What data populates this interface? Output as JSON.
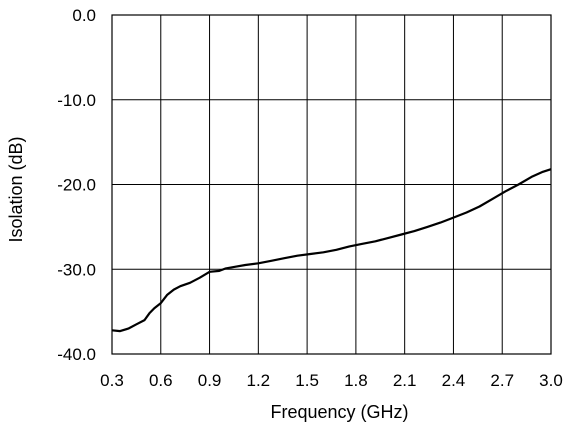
{
  "chart_data": {
    "type": "line",
    "title": "",
    "xlabel": "Frequency (GHz)",
    "ylabel": "Isolation (dB)",
    "xlim": [
      0.3,
      3.0
    ],
    "ylim": [
      -40,
      0
    ],
    "xticks": [
      0.3,
      0.6,
      0.9,
      1.2,
      1.5,
      1.8,
      2.1,
      2.4,
      2.7,
      3.0
    ],
    "xtick_labels": [
      "0.3",
      "0.6",
      "0.9",
      "1.2",
      "1.5",
      "1.8",
      "2.1",
      "2.4",
      "2.7",
      "3.0"
    ],
    "yticks": [
      0,
      -10,
      -20,
      -30,
      -40
    ],
    "ytick_labels": [
      "0.0",
      "-10.0",
      "-20.0",
      "-30.0",
      "-40.0"
    ],
    "grid": true,
    "series": [
      {
        "color": "#000000",
        "x": [
          0.3,
          0.35,
          0.4,
          0.45,
          0.5,
          0.53,
          0.56,
          0.6,
          0.64,
          0.68,
          0.72,
          0.78,
          0.84,
          0.9,
          0.96,
          1.0,
          1.06,
          1.12,
          1.2,
          1.28,
          1.36,
          1.44,
          1.52,
          1.6,
          1.68,
          1.76,
          1.84,
          1.92,
          2.0,
          2.08,
          2.16,
          2.24,
          2.32,
          2.4,
          2.48,
          2.56,
          2.64,
          2.72,
          2.8,
          2.88,
          2.95,
          3.0
        ],
        "values": [
          -37.2,
          -37.3,
          -37.0,
          -36.5,
          -36.0,
          -35.2,
          -34.6,
          -34.0,
          -33.0,
          -32.4,
          -32.0,
          -31.6,
          -31.0,
          -30.3,
          -30.2,
          -29.9,
          -29.7,
          -29.5,
          -29.3,
          -29.0,
          -28.7,
          -28.4,
          -28.2,
          -28.0,
          -27.7,
          -27.3,
          -27.0,
          -26.7,
          -26.3,
          -25.9,
          -25.5,
          -25.0,
          -24.5,
          -23.9,
          -23.3,
          -22.6,
          -21.7,
          -20.8,
          -20.0,
          -19.1,
          -18.5,
          -18.2
        ]
      }
    ]
  }
}
